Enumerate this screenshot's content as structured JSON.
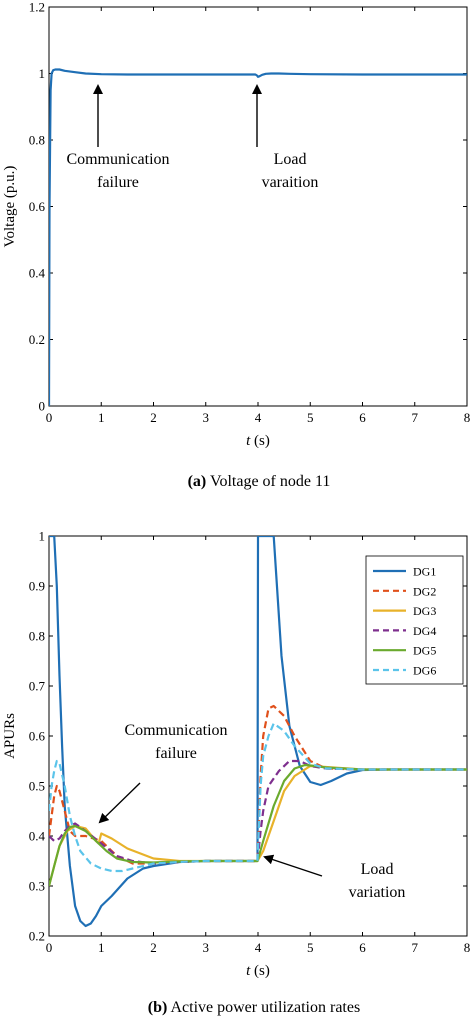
{
  "chart_data": [
    {
      "type": "line",
      "caption_tag": "(a)",
      "caption_text": " Voltage of node 11",
      "xlabel_var": "t",
      "xlabel_unit": " (s)",
      "ylabel": "Voltage (p.u.)",
      "xlim": [
        0,
        8
      ],
      "ylim": [
        0,
        1.2
      ],
      "x_ticks": [
        "0",
        "1",
        "2",
        "3",
        "4",
        "5",
        "6",
        "7",
        "8"
      ],
      "y_ticks": [
        "0",
        "0.2",
        "0.4",
        "0.6",
        "0.8",
        "1",
        "1.2"
      ],
      "grid": false,
      "annotations": [
        {
          "lines": [
            "Communication",
            "failure"
          ],
          "x": 0.9
        },
        {
          "lines": [
            "Load",
            "varaition"
          ],
          "x": 4.0
        }
      ],
      "series": [
        {
          "color": "#1f6fb5",
          "dash": "solid",
          "x": [
            0,
            0.01,
            0.03,
            0.05,
            0.08,
            0.12,
            0.2,
            0.3,
            0.5,
            0.7,
            1.0,
            1.5,
            2,
            3,
            3.95,
            3.98,
            4.0,
            4.03,
            4.08,
            4.15,
            4.25,
            4.4,
            4.6,
            5,
            6,
            7,
            8
          ],
          "y": [
            0,
            0.6,
            0.95,
            1.0,
            1.01,
            1.012,
            1.012,
            1.008,
            1.004,
            1.0,
            0.998,
            0.997,
            0.997,
            0.997,
            0.997,
            0.994,
            0.99,
            0.992,
            0.996,
            0.999,
            1.0,
            1.0,
            0.999,
            0.998,
            0.997,
            0.997,
            0.997
          ]
        }
      ]
    },
    {
      "type": "line",
      "caption_tag": "(b)",
      "caption_text": " Active power utilization rates",
      "xlabel_var": "t",
      "xlabel_unit": " (s)",
      "ylabel": "APURs",
      "xlim": [
        0,
        8
      ],
      "ylim": [
        0.2,
        1.0
      ],
      "x_ticks": [
        "0",
        "1",
        "2",
        "3",
        "4",
        "5",
        "6",
        "7",
        "8"
      ],
      "y_ticks": [
        "0.2",
        "0.3",
        "0.4",
        "0.5",
        "0.6",
        "0.7",
        "0.8",
        "0.9",
        "1"
      ],
      "grid": false,
      "legend": "top-right",
      "annotations": [
        {
          "lines": [
            "Communication",
            "failure"
          ],
          "x": 1.0
        },
        {
          "lines": [
            "Load",
            "variation"
          ],
          "x": 4.0
        }
      ],
      "series": [
        {
          "name": "DG1",
          "color": "#1f6fb5",
          "dash": "solid",
          "x": [
            0,
            0.05,
            0.1,
            0.15,
            0.2,
            0.25,
            0.3,
            0.4,
            0.5,
            0.6,
            0.7,
            0.8,
            0.9,
            1.0,
            1.2,
            1.5,
            1.8,
            2,
            2.5,
            3,
            3.5,
            3.99,
            4.0,
            4.3,
            4.35,
            4.45,
            4.6,
            4.8,
            5.0,
            5.2,
            5.4,
            5.7,
            6,
            6.5,
            7,
            8
          ],
          "y": [
            1.0,
            1.0,
            1.0,
            0.9,
            0.72,
            0.58,
            0.46,
            0.34,
            0.26,
            0.23,
            0.22,
            0.225,
            0.24,
            0.26,
            0.28,
            0.315,
            0.335,
            0.34,
            0.348,
            0.35,
            0.35,
            0.35,
            1.0,
            1.0,
            0.92,
            0.76,
            0.62,
            0.54,
            0.508,
            0.502,
            0.51,
            0.525,
            0.532,
            0.533,
            0.533,
            0.533
          ]
        },
        {
          "name": "DG2",
          "color": "#e0501b",
          "dash": "dashed",
          "x": [
            0,
            0.05,
            0.1,
            0.15,
            0.2,
            0.3,
            0.4,
            0.5,
            0.7,
            1.0,
            1.3,
            1.6,
            2,
            2.5,
            3,
            3.5,
            3.99,
            4.05,
            4.1,
            4.2,
            4.3,
            4.5,
            4.7,
            5.0,
            5.3,
            6,
            8
          ],
          "y": [
            0.4,
            0.44,
            0.48,
            0.5,
            0.49,
            0.45,
            0.41,
            0.4,
            0.4,
            0.39,
            0.36,
            0.345,
            0.345,
            0.348,
            0.35,
            0.35,
            0.35,
            0.52,
            0.6,
            0.655,
            0.66,
            0.64,
            0.6,
            0.55,
            0.535,
            0.533,
            0.533
          ]
        },
        {
          "name": "DG3",
          "color": "#e8b22a",
          "dash": "solid",
          "x": [
            0,
            0.1,
            0.2,
            0.35,
            0.5,
            0.7,
            0.9,
            0.95,
            1.0,
            1.2,
            1.5,
            2,
            2.5,
            3,
            3.5,
            3.99,
            4.1,
            4.3,
            4.5,
            4.7,
            5.0,
            5.3,
            6,
            8
          ],
          "y": [
            0.3,
            0.34,
            0.38,
            0.41,
            0.42,
            0.415,
            0.39,
            0.385,
            0.405,
            0.395,
            0.375,
            0.355,
            0.35,
            0.35,
            0.35,
            0.35,
            0.37,
            0.43,
            0.49,
            0.52,
            0.54,
            0.538,
            0.533,
            0.533
          ]
        },
        {
          "name": "DG4",
          "color": "#7e2f8e",
          "dash": "dashed",
          "x": [
            0,
            0.05,
            0.1,
            0.2,
            0.3,
            0.4,
            0.5,
            0.7,
            1.0,
            1.3,
            1.6,
            2,
            2.5,
            3,
            3.5,
            3.99,
            4.05,
            4.1,
            4.2,
            4.4,
            4.6,
            4.8,
            5.0,
            5.3,
            6,
            8
          ],
          "y": [
            0.4,
            0.395,
            0.39,
            0.395,
            0.41,
            0.42,
            0.425,
            0.41,
            0.385,
            0.36,
            0.35,
            0.345,
            0.348,
            0.35,
            0.35,
            0.35,
            0.41,
            0.45,
            0.5,
            0.53,
            0.55,
            0.55,
            0.54,
            0.535,
            0.533,
            0.533
          ]
        },
        {
          "name": "DG5",
          "color": "#6aaa2e",
          "dash": "solid",
          "x": [
            0,
            0.1,
            0.2,
            0.3,
            0.4,
            0.5,
            0.7,
            0.9,
            1.1,
            1.3,
            1.6,
            2,
            2.5,
            3,
            3.5,
            3.99,
            4.1,
            4.3,
            4.5,
            4.7,
            4.9,
            5.1,
            5.3,
            6,
            8
          ],
          "y": [
            0.3,
            0.34,
            0.38,
            0.405,
            0.418,
            0.42,
            0.41,
            0.39,
            0.37,
            0.355,
            0.348,
            0.347,
            0.349,
            0.35,
            0.35,
            0.35,
            0.39,
            0.46,
            0.51,
            0.535,
            0.542,
            0.54,
            0.537,
            0.533,
            0.533
          ]
        },
        {
          "name": "DG6",
          "color": "#5bc4ea",
          "dash": "dashed",
          "x": [
            0,
            0.05,
            0.1,
            0.15,
            0.2,
            0.3,
            0.4,
            0.5,
            0.6,
            0.8,
            1.0,
            1.2,
            1.4,
            1.6,
            2,
            2.5,
            3,
            3.5,
            3.99,
            4.05,
            4.1,
            4.2,
            4.3,
            4.5,
            4.7,
            5.0,
            5.3,
            6,
            8
          ],
          "y": [
            0.45,
            0.5,
            0.53,
            0.55,
            0.545,
            0.5,
            0.44,
            0.4,
            0.37,
            0.345,
            0.335,
            0.33,
            0.33,
            0.335,
            0.345,
            0.348,
            0.35,
            0.35,
            0.35,
            0.5,
            0.56,
            0.6,
            0.625,
            0.61,
            0.58,
            0.545,
            0.535,
            0.533,
            0.533
          ]
        }
      ]
    }
  ]
}
